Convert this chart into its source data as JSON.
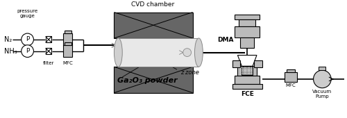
{
  "bg_color": "#ffffff",
  "gray_dark": "#666666",
  "gray_mid": "#999999",
  "gray_light": "#bbbbbb",
  "gray_lighter": "#cccccc",
  "line_color": "#000000",
  "labels": {
    "pressure_gauge": "pressure\ngauge",
    "N2": "N₂",
    "NH3": "NH₃",
    "filter": "filter",
    "MFC": "MFC",
    "CVD_chamber": "CVD chamber",
    "z_zone": "z zone",
    "Ga2O3": "Ga₂O₃ powder",
    "DMA": "DMA",
    "FCE": "FCE",
    "MFC2": "MFC",
    "Vacuum_Pump": "Vacuum\nPump"
  }
}
